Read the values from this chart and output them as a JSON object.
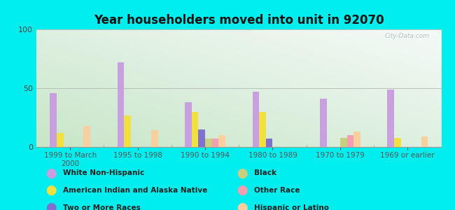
{
  "title": "Year householders moved into unit in 92070",
  "categories": [
    "1999 to March\n2000",
    "1995 to 1998",
    "1990 to 1994",
    "1980 to 1989",
    "1970 to 1979",
    "1969 or earlier"
  ],
  "series": [
    {
      "name": "White Non-Hispanic",
      "values": [
        46,
        72,
        38,
        47,
        41,
        49
      ],
      "color": "#c8a0e0"
    },
    {
      "name": "American Indian and Alaska Native",
      "values": [
        12,
        27,
        30,
        30,
        0,
        8
      ],
      "color": "#f0e040"
    },
    {
      "name": "Two or More Races",
      "values": [
        0,
        0,
        15,
        7,
        0,
        0
      ],
      "color": "#8070d0"
    },
    {
      "name": "Black",
      "values": [
        0,
        0,
        7,
        0,
        8,
        0
      ],
      "color": "#c8d080"
    },
    {
      "name": "Other Race",
      "values": [
        0,
        0,
        7,
        0,
        10,
        0
      ],
      "color": "#f0a0b0"
    },
    {
      "name": "Hispanic or Latino",
      "values": [
        18,
        14,
        10,
        0,
        13,
        9
      ],
      "color": "#f8d0a0"
    }
  ],
  "ylim": [
    0,
    100
  ],
  "yticks": [
    0,
    50,
    100
  ],
  "background_color": "#00eeee",
  "bar_width": 0.1,
  "figsize": [
    6.5,
    3.0
  ],
  "dpi": 100,
  "legend": [
    {
      "label": "White Non-Hispanic",
      "color": "#c8a0e0"
    },
    {
      "label": "American Indian and Alaska Native",
      "color": "#f0e040"
    },
    {
      "label": "Two or More Races",
      "color": "#8070d0"
    },
    {
      "label": "Black",
      "color": "#c8d080"
    },
    {
      "label": "Other Race",
      "color": "#f0a0b0"
    },
    {
      "label": "Hispanic or Latino",
      "color": "#f8d0a0"
    }
  ]
}
